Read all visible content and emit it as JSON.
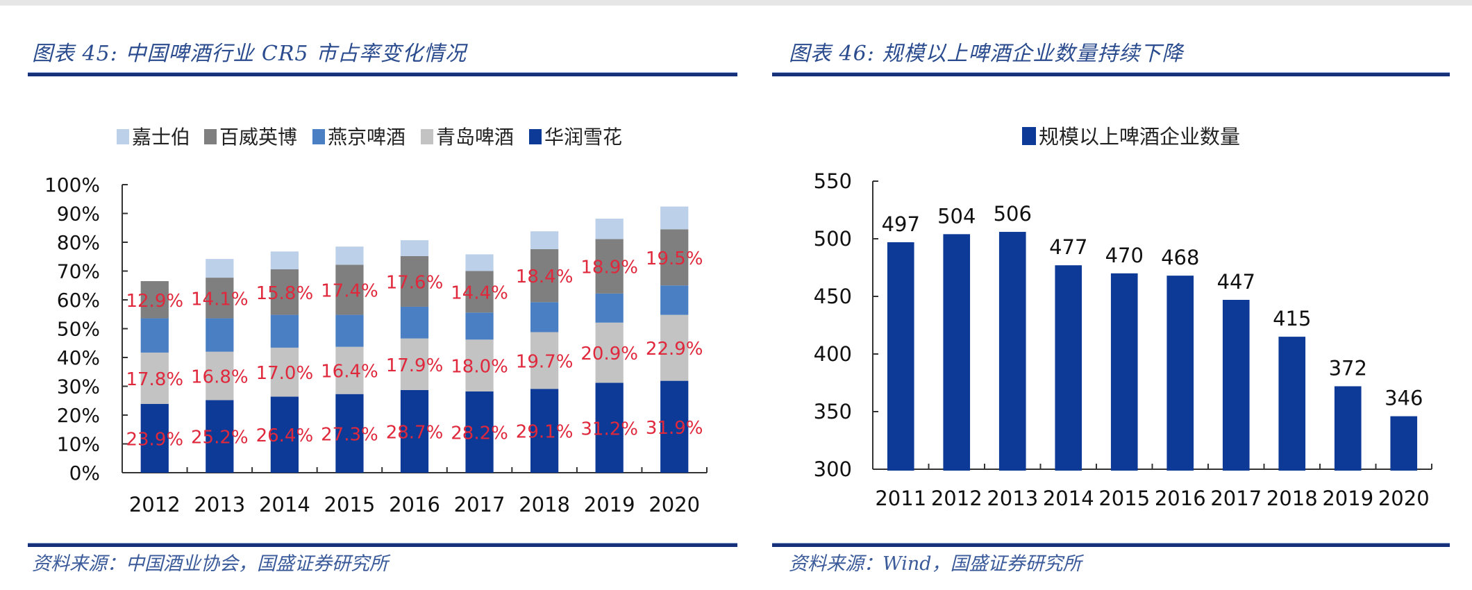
{
  "left_panel": {
    "title": "图表 45:  中国啤酒行业 CR5 市占率变化情况",
    "source": "资料来源：中国酒业协会，国盛证券研究所"
  },
  "right_panel": {
    "title": "图表 46:  规模以上啤酒企业数量持续下降",
    "source": "资料来源：Wind，国盛证券研究所"
  },
  "chart_data": [
    {
      "type": "bar",
      "stacked": true,
      "title": "中国啤酒行业 CR5 市占率变化情况",
      "xlabel": "",
      "ylabel": "",
      "ylim": [
        0,
        100
      ],
      "y_ticks": [
        "0%",
        "10%",
        "20%",
        "30%",
        "40%",
        "50%",
        "60%",
        "70%",
        "80%",
        "90%",
        "100%"
      ],
      "grid": false,
      "legend_position": "top",
      "categories": [
        "2012",
        "2013",
        "2014",
        "2015",
        "2016",
        "2017",
        "2018",
        "2019",
        "2020"
      ],
      "legend": [
        "嘉士伯",
        "百威英博",
        "燕京啤酒",
        "青岛啤酒",
        "华润雪花"
      ],
      "series": [
        {
          "name": "华润雪花",
          "color": "#0c3a96",
          "labeled": true,
          "values": [
            23.9,
            25.2,
            26.4,
            27.3,
            28.7,
            28.2,
            29.1,
            31.2,
            31.9
          ]
        },
        {
          "name": "青岛啤酒",
          "color": "#c3c3c3",
          "labeled": true,
          "values": [
            17.8,
            16.8,
            17.0,
            16.4,
            17.9,
            18.0,
            19.7,
            20.9,
            22.9
          ]
        },
        {
          "name": "燕京啤酒",
          "color": "#4a7fc4",
          "labeled": false,
          "values": [
            11.9,
            11.6,
            11.4,
            11.1,
            11.0,
            9.4,
            10.4,
            10.1,
            10.2
          ]
        },
        {
          "name": "百威英博",
          "color": "#7f7f7f",
          "labeled": true,
          "values": [
            12.9,
            14.1,
            15.8,
            17.4,
            17.6,
            14.4,
            18.4,
            18.9,
            19.5
          ]
        },
        {
          "name": "嘉士伯",
          "color": "#bcd0ea",
          "labeled": false,
          "values": [
            0,
            6.5,
            6.2,
            6.3,
            5.5,
            5.8,
            6.2,
            7.1,
            7.9
          ]
        }
      ],
      "data_label_color": "#e0283c",
      "data_label_suffix": "%"
    },
    {
      "type": "bar",
      "title": "规模以上啤酒企业数量持续下降",
      "xlabel": "",
      "ylabel": "",
      "ylim": [
        300,
        550
      ],
      "y_ticks": [
        "300",
        "350",
        "400",
        "450",
        "500",
        "550"
      ],
      "grid": false,
      "legend_position": "top",
      "legend": [
        "规模以上啤酒企业数量"
      ],
      "categories": [
        "2011",
        "2012",
        "2013",
        "2014",
        "2015",
        "2016",
        "2017",
        "2018",
        "2019",
        "2020"
      ],
      "series": [
        {
          "name": "规模以上啤酒企业数量",
          "color": "#0c3a96",
          "values": [
            497,
            504,
            506,
            477,
            470,
            468,
            447,
            415,
            372,
            346
          ]
        }
      ],
      "data_label_color": "#111111"
    }
  ]
}
